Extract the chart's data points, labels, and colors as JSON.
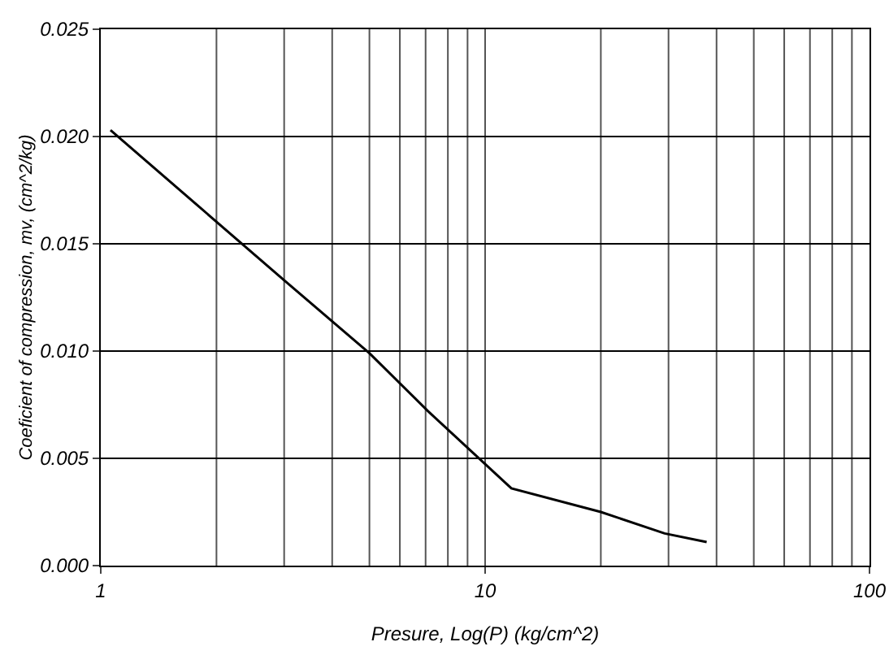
{
  "chart_data": {
    "type": "line",
    "xlabel": "Presure, Log(P) (kg/cm^2)",
    "ylabel": "Coeficient of compression, mv, (cm^2/kg)",
    "x": [
      1.06,
      3,
      5,
      7.1,
      11.7,
      20,
      29.3,
      37.7
    ],
    "series": [
      {
        "color": "#000000",
        "values": [
          0.0203,
          0.0133,
          0.0099,
          0.0072,
          0.0036,
          0.0025,
          0.0015,
          0.0011
        ]
      }
    ],
    "log": "x",
    "xlim": [
      1,
      100
    ],
    "xticks": [
      1,
      10,
      100
    ],
    "ylim": [
      0,
      0.025
    ],
    "yticks": [
      {
        "value": 0,
        "label": "0.000"
      },
      {
        "value": 0.005,
        "label": "0.005"
      },
      {
        "value": 0.01,
        "label": "0.010"
      },
      {
        "value": 0.015,
        "label": "0.015"
      },
      {
        "value": 0.02,
        "label": "0.020"
      },
      {
        "value": 0.025,
        "label": "0.025"
      }
    ],
    "grid": true,
    "marker": "none",
    "line_style": "solid"
  }
}
